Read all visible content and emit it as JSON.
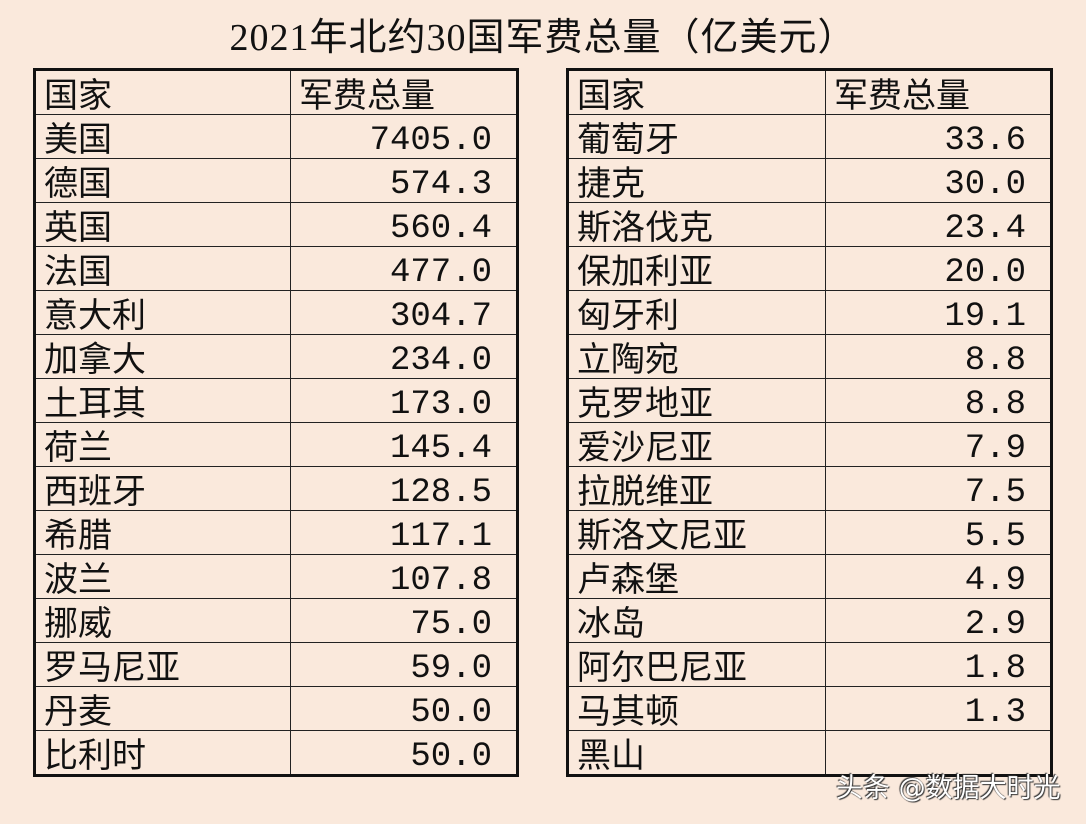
{
  "title": "2021年北约30国军费总量（亿美元）",
  "headers": {
    "country": "国家",
    "total": "军费总量"
  },
  "left_rows": [
    {
      "country": "美国",
      "value": "7405.0"
    },
    {
      "country": "德国",
      "value": "574.3"
    },
    {
      "country": "英国",
      "value": "560.4"
    },
    {
      "country": "法国",
      "value": "477.0"
    },
    {
      "country": "意大利",
      "value": "304.7"
    },
    {
      "country": "加拿大",
      "value": "234.0"
    },
    {
      "country": "土耳其",
      "value": "173.0"
    },
    {
      "country": "荷兰",
      "value": "145.4"
    },
    {
      "country": "西班牙",
      "value": "128.5"
    },
    {
      "country": "希腊",
      "value": "117.1"
    },
    {
      "country": "波兰",
      "value": "107.8"
    },
    {
      "country": "挪威",
      "value": "75.0"
    },
    {
      "country": "罗马尼亚",
      "value": "59.0"
    },
    {
      "country": "丹麦",
      "value": "50.0"
    },
    {
      "country": "比利时",
      "value": "50.0"
    }
  ],
  "right_rows": [
    {
      "country": "葡萄牙",
      "value": "33.6"
    },
    {
      "country": "捷克",
      "value": "30.0"
    },
    {
      "country": "斯洛伐克",
      "value": "23.4"
    },
    {
      "country": "保加利亚",
      "value": "20.0"
    },
    {
      "country": "匈牙利",
      "value": "19.1"
    },
    {
      "country": "立陶宛",
      "value": "8.8"
    },
    {
      "country": "克罗地亚",
      "value": "8.8"
    },
    {
      "country": "爱沙尼亚",
      "value": "7.9"
    },
    {
      "country": "拉脱维亚",
      "value": "7.5"
    },
    {
      "country": "斯洛文尼亚",
      "value": "5.5"
    },
    {
      "country": "卢森堡",
      "value": "4.9"
    },
    {
      "country": "冰岛",
      "value": "2.9"
    },
    {
      "country": "阿尔巴尼亚",
      "value": "1.8"
    },
    {
      "country": "马其顿",
      "value": "1.3"
    },
    {
      "country": "黑山",
      "value": ""
    }
  ],
  "watermark": "头条 @数据大时光"
}
